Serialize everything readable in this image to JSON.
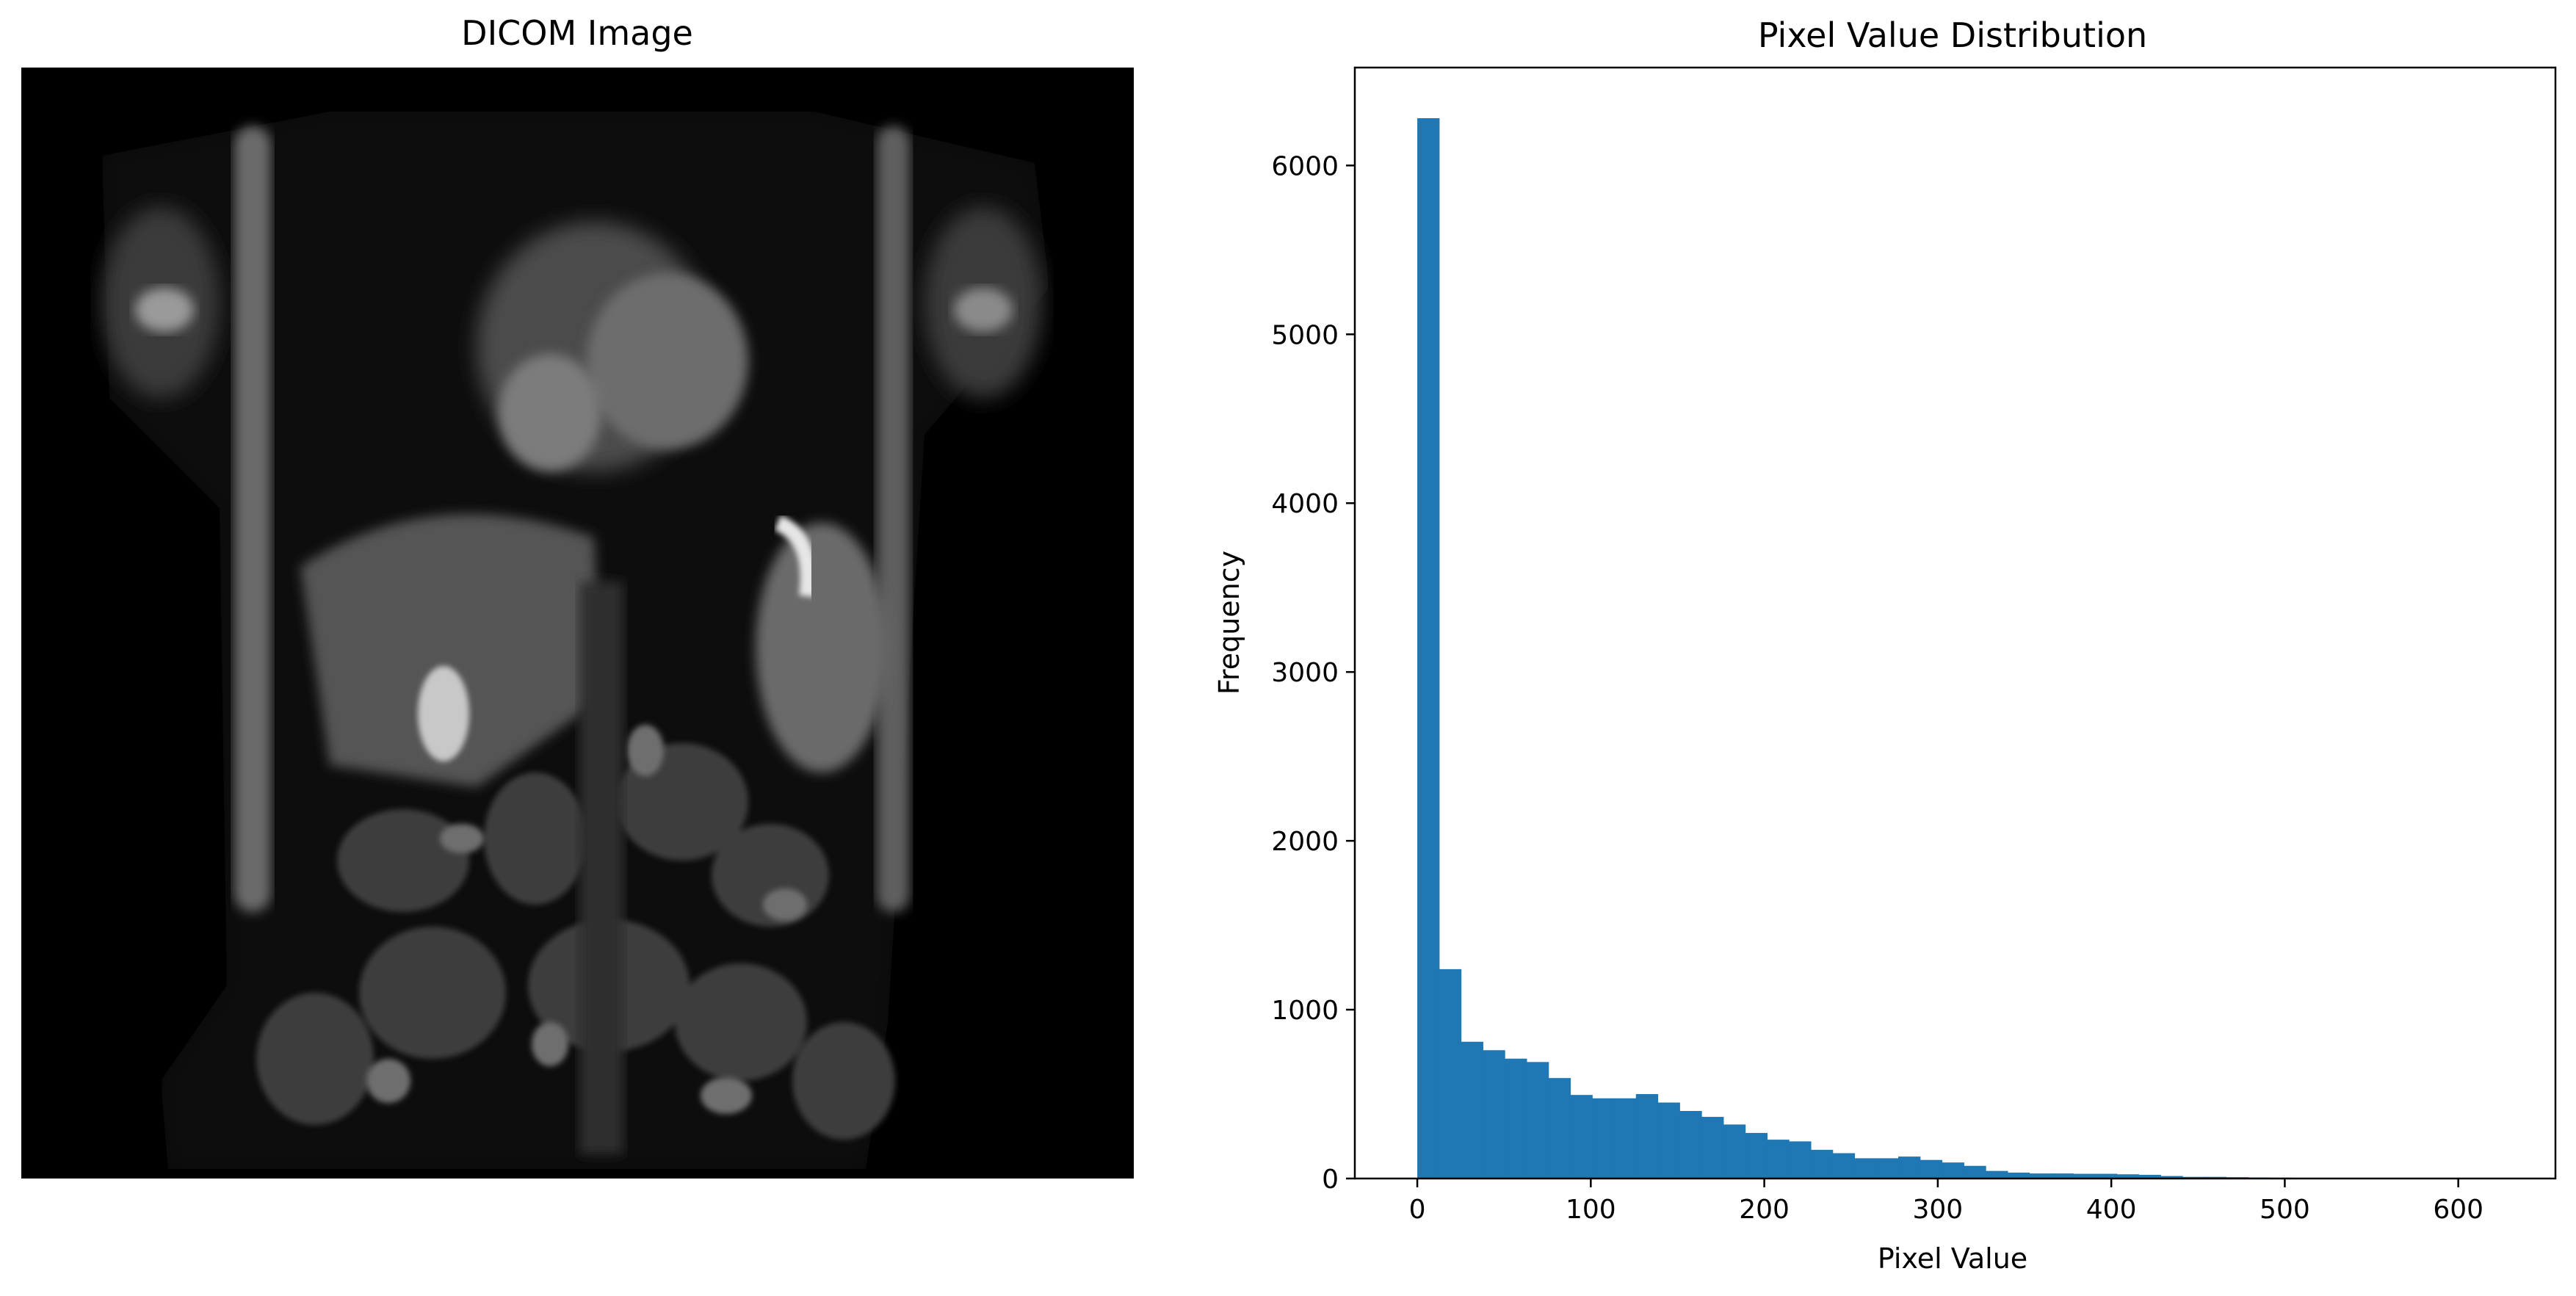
{
  "image_panel": {
    "title": "DICOM Image"
  },
  "colors": {
    "bar": "#1f77b4",
    "background": "#ffffff",
    "image_background": "#000000"
  },
  "chart_data": {
    "type": "bar",
    "title": "Pixel Value Distribution",
    "xlabel": "Pixel Value",
    "ylabel": "Frequency",
    "xlim": [
      -36,
      656
    ],
    "ylim": [
      0,
      6580
    ],
    "xticks": [
      0,
      100,
      200,
      300,
      400,
      500,
      600
    ],
    "yticks": [
      0,
      1000,
      2000,
      3000,
      4000,
      5000,
      6000
    ],
    "bin_width": 12.6,
    "bin_start": 0,
    "values": [
      6280,
      1240,
      810,
      760,
      710,
      690,
      595,
      495,
      475,
      475,
      500,
      450,
      400,
      365,
      320,
      270,
      230,
      220,
      170,
      150,
      120,
      120,
      130,
      110,
      95,
      75,
      45,
      35,
      30,
      30,
      28,
      28,
      25,
      22,
      15,
      10,
      10,
      8,
      6,
      5,
      4,
      3,
      3,
      2,
      2,
      2,
      1,
      1,
      1,
      1
    ],
    "grid": false,
    "legend": "none"
  }
}
